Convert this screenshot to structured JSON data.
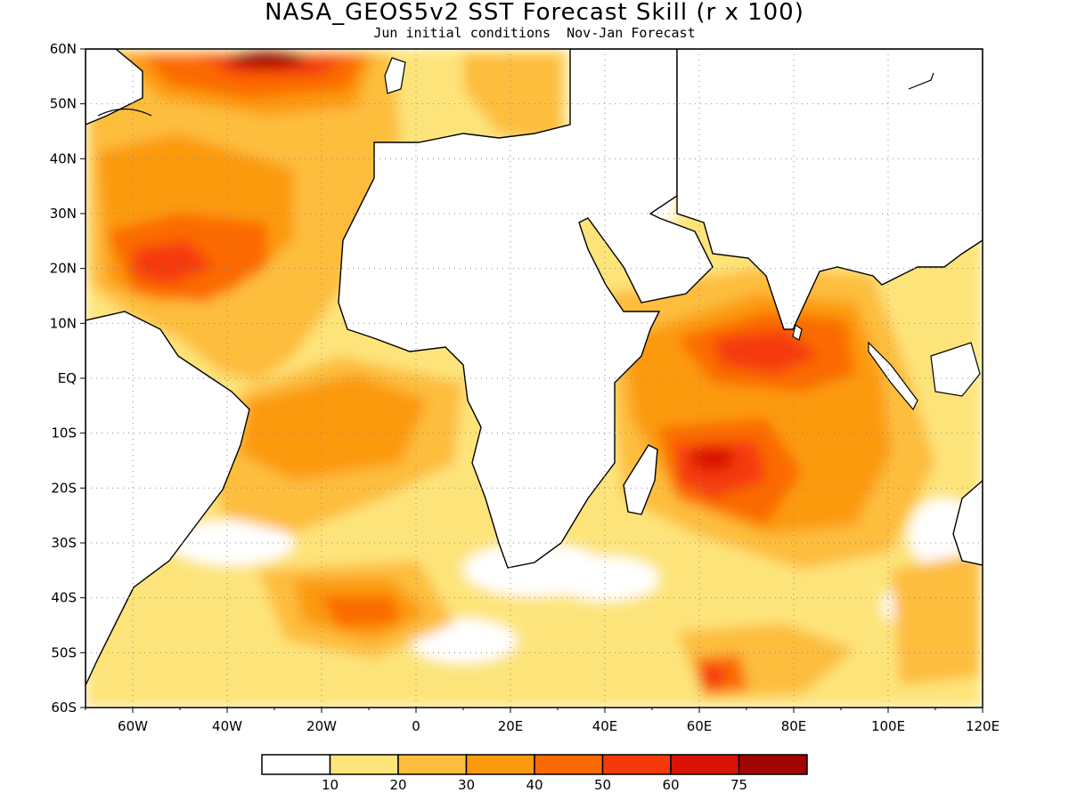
{
  "title": "NASA_GEOS5v2 SST Forecast Skill (r x 100)",
  "subtitle": "Jun initial conditions  Nov-Jan Forecast",
  "map": {
    "lon_range": [
      -70,
      120
    ],
    "lat_range": [
      -60,
      60
    ],
    "lat_ticks": [
      "60N",
      "50N",
      "40N",
      "30N",
      "20N",
      "10N",
      "EQ",
      "10S",
      "20S",
      "30S",
      "40S",
      "50S",
      "60S"
    ],
    "lon_ticks": [
      "60W",
      "40W",
      "20W",
      "0",
      "20E",
      "40E",
      "60E",
      "80E",
      "100E",
      "120E"
    ],
    "grid": "dotted"
  },
  "legend": {
    "colors": [
      "#ffffff",
      "#fde47a",
      "#fdbd3c",
      "#fc9a0e",
      "#fb6a00",
      "#f53a0a",
      "#da1205",
      "#a10602"
    ],
    "labels": [
      "10",
      "20",
      "30",
      "40",
      "50",
      "60",
      "75"
    ]
  }
}
